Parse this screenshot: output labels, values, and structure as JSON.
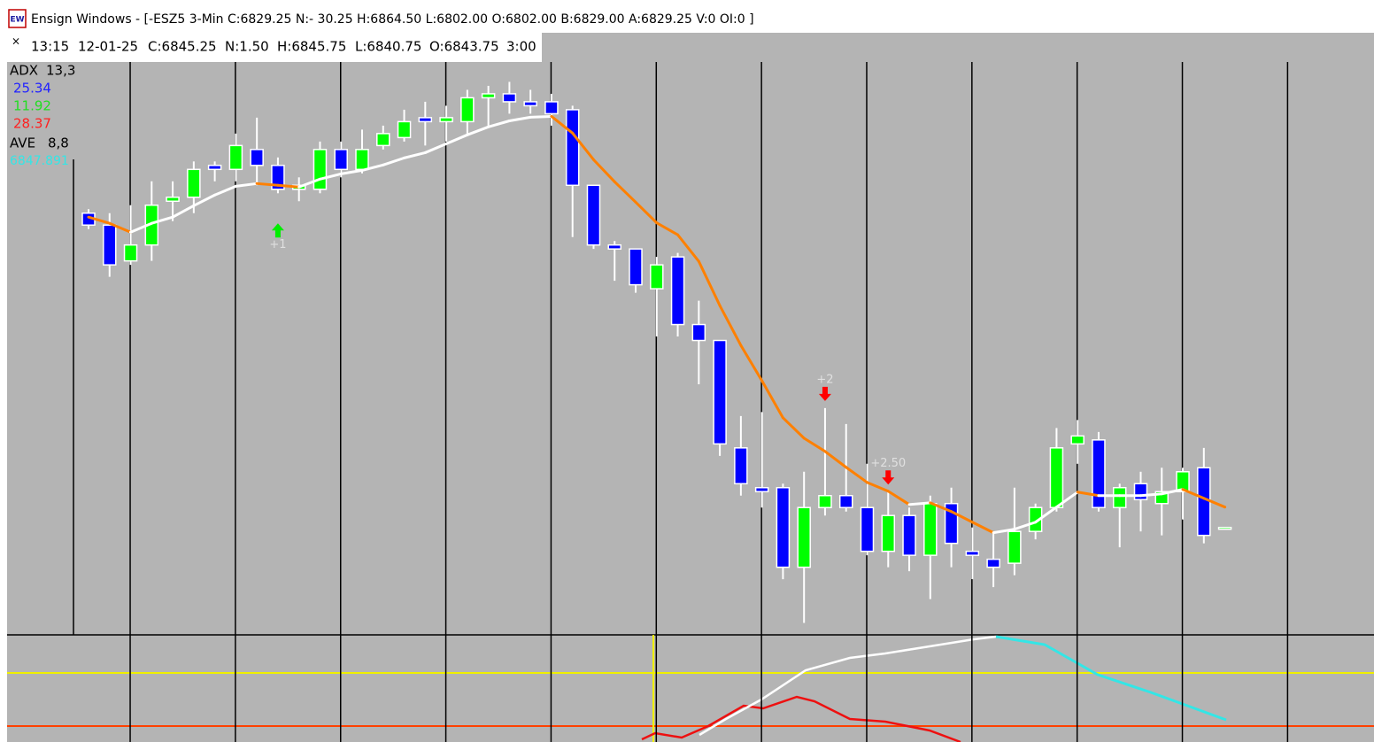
{
  "window": {
    "title": "Ensign Windows - [-ESZ5 3-Min C:6829.25 N:- 30.25 H:6864.50 L:6802.00 O:6802.00 B:6829.00 A:6829.25 V:0 OI:0 ]",
    "icon": "EW"
  },
  "cursor": {
    "close": "×",
    "fields": [
      "13:15",
      "12-01-25",
      "C:6845.25",
      "N:1.50",
      "H:6845.75",
      "L:6840.75",
      "O:6843.75",
      "3:00"
    ]
  },
  "legend": {
    "adx": "ADX",
    "adx_params": "13,3",
    "adx_values": [
      {
        "value": 25.34,
        "color": "#2222ff"
      },
      {
        "value": 11.92,
        "color": "#22dd22"
      },
      {
        "value": 28.37,
        "color": "#ff2020"
      }
    ],
    "ave": "AVE",
    "ave_params": "8,8",
    "ave_color": "#33e6e6"
  },
  "chart_data": {
    "type": "candlestick",
    "open": [
      6848.5,
      6847.75,
      6845.5,
      6846.5,
      6849.25,
      6849.5,
      6851.5,
      6851.25,
      6852.5,
      6851.5,
      6850,
      6850,
      6852.5,
      6851.25,
      6852.75,
      6853.25,
      6854.5,
      6854.25,
      6854.25,
      6855.75,
      6856,
      6855.5,
      6855.5,
      6855,
      6850.25,
      6846.5,
      6846.25,
      6843.75,
      6845.75,
      6841.5,
      6840.5,
      6833.75,
      6831.25,
      6831.25,
      6826.25,
      6830,
      6830.75,
      6830,
      6827.25,
      6829.5,
      6827,
      6830.25,
      6827.25,
      6826.75,
      6826.5,
      6828.5,
      6830,
      6834,
      6834.25,
      6830,
      6831.5,
      6830.25,
      6831,
      6832.5,
      6828.75
    ],
    "high": [
      6848.75,
      6848.5,
      6849,
      6850.5,
      6850.5,
      6851.75,
      6851.75,
      6853.5,
      6854.5,
      6852,
      6850.75,
      6853,
      6853,
      6853.75,
      6854,
      6855,
      6855.5,
      6855.25,
      6856.25,
      6856.5,
      6856.75,
      6856.25,
      6856,
      6855.25,
      6850.25,
      6846.75,
      6846.25,
      6845.75,
      6846,
      6843,
      6840.5,
      6835.75,
      6836,
      6831.5,
      6832.25,
      6836.25,
      6835.25,
      6832.75,
      6831,
      6830,
      6830.75,
      6831.25,
      6828.75,
      6828.5,
      6831.25,
      6830.25,
      6835,
      6835.5,
      6834.75,
      6831.5,
      6832.25,
      6832.5,
      6832.5,
      6833.75,
      6828.75
    ],
    "low": [
      6847.5,
      6844.5,
      6845.25,
      6845.5,
      6848,
      6848.5,
      6850.5,
      6850.5,
      6850.25,
      6849.75,
      6849.25,
      6849.75,
      6850.75,
      6851,
      6852.5,
      6853,
      6852.75,
      6853,
      6853.5,
      6854,
      6854.75,
      6854.75,
      6854,
      6847,
      6846.25,
      6844.25,
      6843.5,
      6840.75,
      6840.75,
      6837.75,
      6833.25,
      6830.75,
      6830,
      6825.5,
      6822.75,
      6829.5,
      6829.75,
      6827,
      6826.25,
      6826,
      6824.25,
      6826.25,
      6825.5,
      6825,
      6825.75,
      6828,
      6829.75,
      6832.75,
      6829.75,
      6827.5,
      6828.5,
      6828.25,
      6829.25,
      6827.75,
      6828.75
    ],
    "close": [
      6847.75,
      6845.25,
      6846.5,
      6849,
      6849.5,
      6851.25,
      6851.25,
      6852.75,
      6851.5,
      6850,
      6850.25,
      6852.5,
      6851.25,
      6852.5,
      6853.5,
      6854.25,
      6854.25,
      6854.5,
      6855.75,
      6856,
      6855.5,
      6855.25,
      6854.75,
      6850.25,
      6846.5,
      6846.25,
      6844,
      6845.25,
      6841.5,
      6840.5,
      6834,
      6831.5,
      6831,
      6826.25,
      6830,
      6830.75,
      6830,
      6827.25,
      6829.5,
      6827,
      6830.25,
      6827.75,
      6827,
      6826.25,
      6828.5,
      6830,
      6833.75,
      6834.5,
      6830,
      6831.25,
      6830.5,
      6831,
      6832.25,
      6828.25,
      6828.75
    ],
    "up_color": "#00ff00",
    "down_color": "#0000ff",
    "ylim": [
      6822,
      6858
    ],
    "average": {
      "values": [
        6848.25,
        6847.86,
        6847.3,
        6847.86,
        6848.25,
        6848.97,
        6849.64,
        6850.19,
        6850.36,
        6850.25,
        6850.14,
        6850.64,
        6850.97,
        6851.19,
        6851.53,
        6851.97,
        6852.3,
        6852.86,
        6853.42,
        6853.92,
        6854.3,
        6854.53,
        6854.58,
        6853.53,
        6851.86,
        6850.47,
        6849.19,
        6847.891,
        6847.14,
        6845.47,
        6842.69,
        6840.19,
        6837.97,
        6835.64,
        6834.36,
        6833.53,
        6832.53,
        6831.58,
        6831.03,
        6830.19,
        6830.3,
        6829.75,
        6829.08,
        6828.42,
        6828.64,
        6829.08,
        6830.03,
        6830.97,
        6830.75,
        6830.75,
        6830.75,
        6830.86,
        6831.14,
        6830.58,
        6830.03
      ],
      "rise_color": "#ffffff",
      "fall_color": "#ff8000"
    },
    "signals": [
      {
        "label": "+1",
        "candle": 9,
        "side": "buy",
        "color": "#00ee00"
      },
      {
        "label": "+2",
        "candle": 35,
        "side": "sell",
        "color": "#ff0000"
      },
      {
        "label": "+2.50",
        "candle": 38,
        "side": "sell",
        "color": "#ff0000"
      }
    ]
  }
}
